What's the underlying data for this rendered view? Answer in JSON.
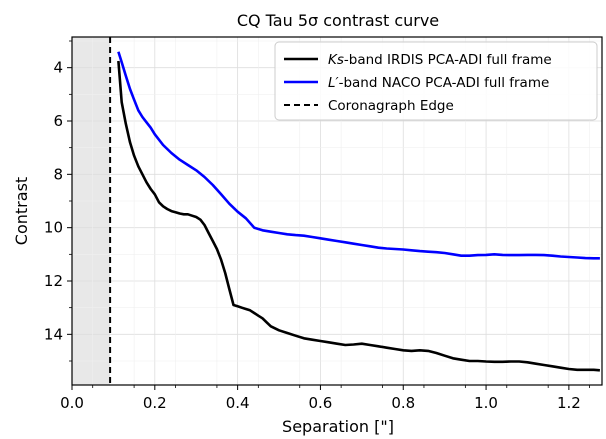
{
  "chart_data": {
    "type": "line",
    "title": "CQ Tau 5σ contrast curve",
    "xlabel": "Separation [\"]",
    "ylabel": "Contrast",
    "xlim": [
      0.0,
      1.28
    ],
    "ylim": [
      15.9,
      2.85
    ],
    "y_inverted": true,
    "grid": true,
    "legend_position": "top-right",
    "xticks": [
      {
        "value": 0.0,
        "label": "0.0"
      },
      {
        "value": 0.2,
        "label": "0.2"
      },
      {
        "value": 0.4,
        "label": "0.4"
      },
      {
        "value": 0.6,
        "label": "0.6"
      },
      {
        "value": 0.8,
        "label": "0.8"
      },
      {
        "value": 1.0,
        "label": "1.0"
      },
      {
        "value": 1.2,
        "label": "1.2"
      }
    ],
    "yticks": [
      {
        "value": 4,
        "label": "4"
      },
      {
        "value": 6,
        "label": "6"
      },
      {
        "value": 8,
        "label": "8"
      },
      {
        "value": 10,
        "label": "10"
      },
      {
        "value": 12,
        "label": "12"
      },
      {
        "value": 14,
        "label": "14"
      }
    ],
    "shaded_region": {
      "x_from": 0.0,
      "x_to": 0.092,
      "color": "#e8e8e8"
    },
    "series": [
      {
        "name_prefix": "Ks",
        "name": "-band IRDIS PCA-ADI full frame",
        "color": "#000000",
        "style": "solid",
        "x": [
          0.112,
          0.12,
          0.13,
          0.14,
          0.15,
          0.16,
          0.17,
          0.18,
          0.19,
          0.2,
          0.21,
          0.22,
          0.23,
          0.24,
          0.25,
          0.26,
          0.27,
          0.28,
          0.29,
          0.3,
          0.31,
          0.32,
          0.33,
          0.34,
          0.35,
          0.36,
          0.37,
          0.38,
          0.39,
          0.4,
          0.41,
          0.42,
          0.43,
          0.44,
          0.45,
          0.46,
          0.47,
          0.48,
          0.5,
          0.52,
          0.54,
          0.56,
          0.58,
          0.6,
          0.62,
          0.64,
          0.66,
          0.68,
          0.7,
          0.72,
          0.74,
          0.76,
          0.78,
          0.8,
          0.82,
          0.84,
          0.86,
          0.88,
          0.9,
          0.92,
          0.94,
          0.96,
          0.98,
          1.0,
          1.02,
          1.04,
          1.06,
          1.08,
          1.1,
          1.12,
          1.14,
          1.16,
          1.18,
          1.2,
          1.22,
          1.24,
          1.26,
          1.275
        ],
        "y": [
          3.75,
          5.3,
          6.1,
          6.8,
          7.3,
          7.7,
          8.0,
          8.3,
          8.55,
          8.75,
          9.05,
          9.2,
          9.3,
          9.38,
          9.42,
          9.47,
          9.5,
          9.5,
          9.55,
          9.6,
          9.7,
          9.9,
          10.2,
          10.5,
          10.8,
          11.2,
          11.7,
          12.3,
          12.9,
          12.95,
          13.0,
          13.05,
          13.1,
          13.2,
          13.3,
          13.4,
          13.55,
          13.7,
          13.85,
          13.95,
          14.05,
          14.15,
          14.2,
          14.25,
          14.3,
          14.35,
          14.4,
          14.38,
          14.35,
          14.4,
          14.45,
          14.5,
          14.55,
          14.6,
          14.62,
          14.6,
          14.62,
          14.7,
          14.8,
          14.9,
          14.95,
          15.0,
          15.0,
          15.02,
          15.03,
          15.03,
          15.02,
          15.02,
          15.05,
          15.1,
          15.15,
          15.2,
          15.25,
          15.3,
          15.33,
          15.33,
          15.33,
          15.35
        ]
      },
      {
        "name_prefix": "L′",
        "name": "-band NACO PCA-ADI full frame",
        "color": "#0000ff",
        "style": "solid",
        "x": [
          0.112,
          0.12,
          0.13,
          0.14,
          0.15,
          0.16,
          0.17,
          0.18,
          0.19,
          0.2,
          0.22,
          0.24,
          0.26,
          0.28,
          0.3,
          0.32,
          0.34,
          0.36,
          0.38,
          0.4,
          0.42,
          0.44,
          0.46,
          0.48,
          0.5,
          0.52,
          0.54,
          0.56,
          0.58,
          0.6,
          0.62,
          0.64,
          0.66,
          0.68,
          0.7,
          0.72,
          0.74,
          0.76,
          0.78,
          0.8,
          0.82,
          0.84,
          0.86,
          0.88,
          0.9,
          0.92,
          0.94,
          0.96,
          0.98,
          1.0,
          1.02,
          1.04,
          1.06,
          1.08,
          1.1,
          1.12,
          1.14,
          1.16,
          1.18,
          1.2,
          1.22,
          1.24,
          1.26,
          1.275
        ],
        "y": [
          3.4,
          3.8,
          4.3,
          4.8,
          5.2,
          5.6,
          5.85,
          6.05,
          6.25,
          6.5,
          6.9,
          7.2,
          7.45,
          7.65,
          7.85,
          8.1,
          8.4,
          8.75,
          9.1,
          9.4,
          9.65,
          10.0,
          10.1,
          10.15,
          10.2,
          10.25,
          10.28,
          10.3,
          10.35,
          10.4,
          10.45,
          10.5,
          10.55,
          10.6,
          10.65,
          10.7,
          10.75,
          10.78,
          10.8,
          10.82,
          10.85,
          10.88,
          10.9,
          10.92,
          10.95,
          11.0,
          11.05,
          11.05,
          11.03,
          11.02,
          11.0,
          11.02,
          11.03,
          11.03,
          11.02,
          11.02,
          11.03,
          11.05,
          11.08,
          11.1,
          11.12,
          11.14,
          11.15,
          11.15
        ]
      },
      {
        "name": "Coronagraph Edge",
        "color": "#000000",
        "style": "dashed",
        "x": [
          0.092,
          0.092
        ],
        "y": [
          2.85,
          15.9
        ]
      }
    ]
  }
}
